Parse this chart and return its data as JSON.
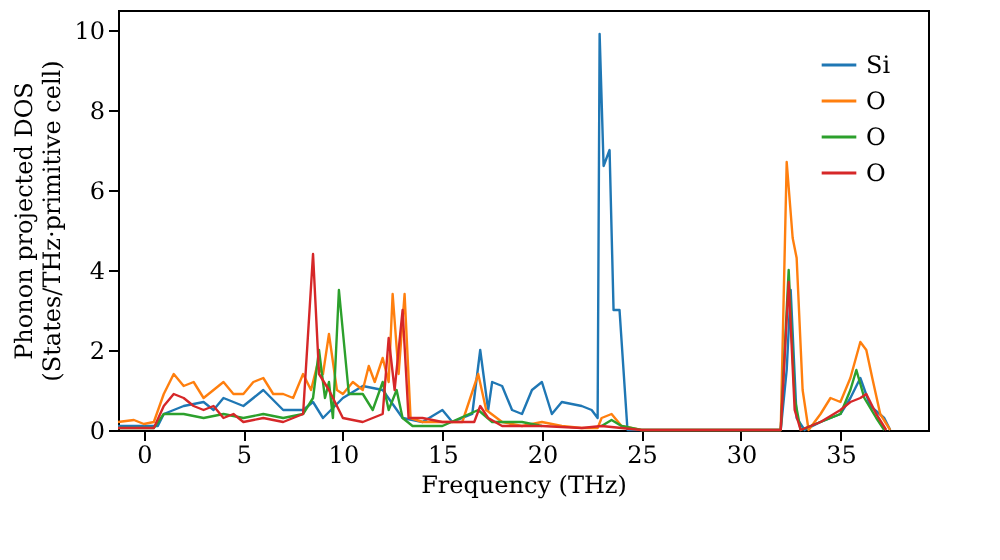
{
  "chart_data": {
    "type": "line",
    "xlabel": "Frequency (THz)",
    "ylabel": "Phonon projected DOS\n(States/THz·primitive cell)",
    "xlim": [
      -1.3,
      39.4
    ],
    "ylim": [
      0,
      10.5
    ],
    "xticks": [
      0,
      5,
      10,
      15,
      20,
      25,
      30,
      35
    ],
    "yticks": [
      0,
      2,
      4,
      6,
      8,
      10
    ],
    "grid": false,
    "legend": "top right",
    "series": [
      {
        "name": "Si",
        "color": "#1f77b4",
        "x": [
          -1.3,
          0.7,
          1,
          2,
          3,
          3.5,
          4,
          5,
          6,
          7,
          8,
          8.5,
          9,
          10,
          11,
          12,
          13,
          14,
          15,
          15.5,
          16.5,
          16.9,
          17.3,
          17.5,
          18,
          18.5,
          19,
          19.5,
          20,
          20.5,
          21,
          22,
          22.5,
          22.8,
          22.9,
          23.1,
          23.4,
          23.6,
          23.9,
          24.3,
          32,
          32.3,
          32.5,
          32.8,
          33.2,
          34,
          35,
          35.5,
          36,
          36.5,
          37.2,
          37.5
        ],
        "values": [
          0.1,
          0.1,
          0.4,
          0.6,
          0.7,
          0.5,
          0.8,
          0.6,
          1.0,
          0.5,
          0.5,
          0.7,
          0.3,
          0.8,
          1.1,
          1.0,
          0.3,
          0.2,
          0.5,
          0.2,
          0.4,
          2.0,
          0.5,
          1.2,
          1.1,
          0.5,
          0.4,
          1.0,
          1.2,
          0.4,
          0.7,
          0.6,
          0.5,
          0.3,
          9.9,
          6.6,
          7.0,
          3.0,
          3.0,
          0,
          0,
          1.5,
          3.5,
          0.3,
          0,
          0.2,
          0.4,
          0.8,
          1.3,
          0.6,
          0.3,
          0
        ]
      },
      {
        "name": "O",
        "color": "#ff7f0e",
        "x": [
          -1.3,
          -0.5,
          0,
          0.5,
          1,
          1.5,
          2,
          2.5,
          3,
          3.5,
          4,
          4.5,
          5,
          5.5,
          6,
          6.5,
          7,
          7.5,
          8,
          8.4,
          8.7,
          9,
          9.3,
          9.7,
          10,
          10.5,
          11,
          11.3,
          11.6,
          12,
          12.3,
          12.5,
          12.8,
          13.1,
          13.4,
          14,
          15,
          16,
          16.8,
          17.2,
          18,
          19,
          20,
          21,
          22,
          22.8,
          23,
          23.5,
          24,
          25,
          32,
          32.3,
          32.6,
          32.8,
          33.1,
          33.4,
          34,
          34.5,
          35,
          35.5,
          36,
          36.3,
          36.6,
          37,
          37.5
        ],
        "values": [
          0.2,
          0.25,
          0.15,
          0.2,
          0.9,
          1.4,
          1.1,
          1.2,
          0.8,
          1.0,
          1.2,
          0.9,
          0.9,
          1.2,
          1.3,
          0.9,
          0.9,
          0.8,
          1.4,
          1.0,
          1.6,
          1.4,
          2.4,
          1.0,
          0.9,
          1.2,
          1.0,
          1.6,
          1.2,
          1.8,
          1.2,
          3.4,
          1.4,
          3.4,
          0.3,
          0.2,
          0.2,
          0.2,
          1.4,
          0.5,
          0.2,
          0.1,
          0.2,
          0.1,
          0.05,
          0.05,
          0.3,
          0.4,
          0.1,
          0,
          0,
          6.7,
          4.8,
          4.3,
          1.0,
          0,
          0.4,
          0.8,
          0.7,
          1.3,
          2.2,
          2.0,
          1.3,
          0.4,
          0
        ]
      },
      {
        "name": "O",
        "color": "#2ca02c",
        "x": [
          -1.3,
          0.5,
          1,
          2,
          3,
          4,
          5,
          6,
          7,
          8,
          8.5,
          8.8,
          9.1,
          9.3,
          9.5,
          9.8,
          10.3,
          11,
          11.5,
          12,
          12.3,
          12.7,
          13,
          13.5,
          14,
          15,
          16.8,
          17.5,
          19,
          20,
          22,
          23,
          23.5,
          24,
          25,
          32,
          32.4,
          32.7,
          33,
          34,
          35,
          35.5,
          35.8,
          36.2,
          36.8,
          37.2
        ],
        "values": [
          0.05,
          0.05,
          0.4,
          0.4,
          0.3,
          0.4,
          0.3,
          0.4,
          0.3,
          0.4,
          0.8,
          2.0,
          0.8,
          1.2,
          0.3,
          3.5,
          0.9,
          0.9,
          0.5,
          1.2,
          0.5,
          1.0,
          0.3,
          0.1,
          0.1,
          0.1,
          0.5,
          0.2,
          0.2,
          0.1,
          null,
          0.1,
          0.25,
          0.1,
          0,
          0,
          4.0,
          0.8,
          0,
          0.2,
          0.4,
          1.0,
          1.5,
          0.8,
          0.3,
          0
        ]
      },
      {
        "name": "O",
        "color": "#d62728",
        "x": [
          -1.3,
          0.5,
          1,
          1.5,
          2,
          2.5,
          3,
          3.5,
          4,
          4.5,
          5,
          6,
          7,
          8,
          8.5,
          8.8,
          9.3,
          10,
          11,
          12,
          12.3,
          12.6,
          13,
          13.3,
          14,
          15,
          16.6,
          16.9,
          17.3,
          18,
          20,
          22,
          23,
          24,
          25,
          32,
          32.4,
          32.7,
          33,
          34,
          35,
          35.5,
          36,
          36.3,
          36.8,
          37.3
        ],
        "values": [
          0.05,
          0.05,
          0.6,
          0.9,
          0.8,
          0.6,
          0.5,
          0.6,
          0.3,
          0.4,
          0.2,
          0.3,
          0.2,
          0.4,
          4.4,
          1.4,
          1.0,
          0.3,
          0.2,
          0.4,
          2.3,
          1.0,
          3.0,
          0.3,
          0.3,
          0.2,
          0.2,
          0.6,
          0.3,
          0.1,
          0.1,
          0.05,
          0.1,
          0.05,
          0,
          0,
          3.7,
          0.5,
          0,
          0.2,
          0.5,
          0.7,
          0.8,
          0.9,
          0.4,
          0
        ]
      }
    ]
  }
}
